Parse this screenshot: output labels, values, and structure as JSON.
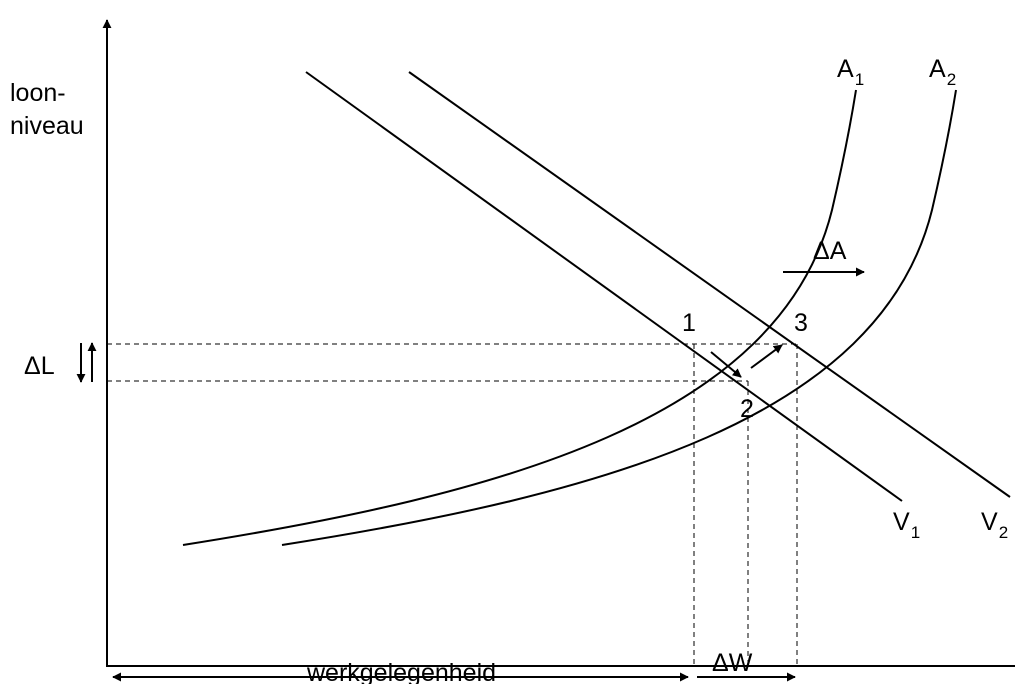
{
  "axis": {
    "y_label_line1": "loon-",
    "y_label_line2": "niveau"
  },
  "curves": {
    "supply_1": {
      "letter": "A",
      "sub": "1"
    },
    "supply_2": {
      "letter": "A",
      "sub": "2"
    },
    "demand_1": {
      "letter": "V",
      "sub": "1"
    },
    "demand_2": {
      "letter": "V",
      "sub": "2"
    }
  },
  "points": {
    "p1": "1",
    "p2": "2",
    "p3": "3"
  },
  "annotations": {
    "delta_a": "ΔA",
    "delta_l": "ΔL",
    "delta_w": "ΔW",
    "employment": "werkgelegenheid"
  }
}
